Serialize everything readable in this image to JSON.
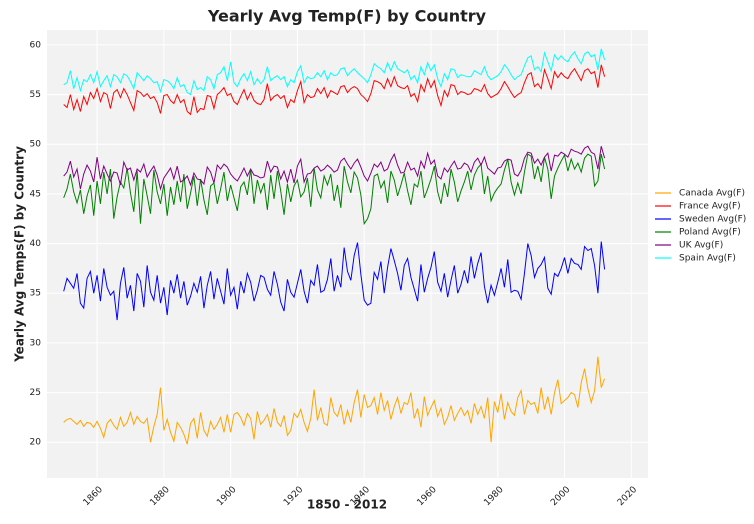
{
  "chart_data": {
    "type": "line",
    "title": "Yearly Avg Temp(F) by Country",
    "xlabel": "1850 - 2012",
    "ylabel": "Yearly Avg Temps(F) by Country",
    "x": [
      1850,
      1851,
      1852,
      1853,
      1854,
      1855,
      1856,
      1857,
      1858,
      1859,
      1860,
      1861,
      1862,
      1863,
      1864,
      1865,
      1866,
      1867,
      1868,
      1869,
      1870,
      1871,
      1872,
      1873,
      1874,
      1875,
      1876,
      1877,
      1878,
      1879,
      1880,
      1881,
      1882,
      1883,
      1884,
      1885,
      1886,
      1887,
      1888,
      1889,
      1890,
      1891,
      1892,
      1893,
      1894,
      1895,
      1896,
      1897,
      1898,
      1899,
      1900,
      1901,
      1902,
      1903,
      1904,
      1905,
      1906,
      1907,
      1908,
      1909,
      1910,
      1911,
      1912,
      1913,
      1914,
      1915,
      1916,
      1917,
      1918,
      1919,
      1920,
      1921,
      1922,
      1923,
      1924,
      1925,
      1926,
      1927,
      1928,
      1929,
      1930,
      1931,
      1932,
      1933,
      1934,
      1935,
      1936,
      1937,
      1938,
      1939,
      1940,
      1941,
      1942,
      1943,
      1944,
      1945,
      1946,
      1947,
      1948,
      1949,
      1950,
      1951,
      1952,
      1953,
      1954,
      1955,
      1956,
      1957,
      1958,
      1959,
      1960,
      1961,
      1962,
      1963,
      1964,
      1965,
      1966,
      1967,
      1968,
      1969,
      1970,
      1971,
      1972,
      1973,
      1974,
      1975,
      1976,
      1977,
      1978,
      1979,
      1980,
      1981,
      1982,
      1983,
      1984,
      1985,
      1986,
      1987,
      1988,
      1989,
      1990,
      1991,
      1992,
      1993,
      1994,
      1995,
      1996,
      1997,
      1998,
      1999,
      2000,
      2001,
      2002,
      2003,
      2004,
      2005,
      2006,
      2007,
      2008,
      2009,
      2010,
      2011,
      2012
    ],
    "series": [
      {
        "name": "Canada Avg(F)",
        "color": "orange",
        "values": [
          22.0,
          22.3,
          22.4,
          22.1,
          21.8,
          22.2,
          21.6,
          22.0,
          21.9,
          21.5,
          22.1,
          21.4,
          20.5,
          21.9,
          22.3,
          21.7,
          21.3,
          22.5,
          21.6,
          22.0,
          23.0,
          21.8,
          22.6,
          22.1,
          21.9,
          22.4,
          20.0,
          21.6,
          22.8,
          25.5,
          21.2,
          22.3,
          21.0,
          20.1,
          22.0,
          21.5,
          20.8,
          19.8,
          21.9,
          22.4,
          20.4,
          23.0,
          21.2,
          20.6,
          22.1,
          21.3,
          21.8,
          22.5,
          21.0,
          22.8,
          21.0,
          22.8,
          23.0,
          22.5,
          21.7,
          22.9,
          22.4,
          20.3,
          23.1,
          21.8,
          22.2,
          22.8,
          21.5,
          23.4,
          22.0,
          21.6,
          22.7,
          20.7,
          21.2,
          22.9,
          22.5,
          23.3,
          22.0,
          21.1,
          22.4,
          25.3,
          22.2,
          23.5,
          21.9,
          21.7,
          24.5,
          23.0,
          22.6,
          23.8,
          21.8,
          23.2,
          22.0,
          24.0,
          25.3,
          22.5,
          24.8,
          23.5,
          23.7,
          24.5,
          22.8,
          25.0,
          23.2,
          24.2,
          22.3,
          23.6,
          24.5,
          22.9,
          24.0,
          23.8,
          25.0,
          22.4,
          23.4,
          21.5,
          24.6,
          22.7,
          23.5,
          24.2,
          22.6,
          23.4,
          21.8,
          22.5,
          23.7,
          22.2,
          22.9,
          23.5,
          22.7,
          23.2,
          21.9,
          23.9,
          22.8,
          23.6,
          22.4,
          24.5,
          20.0,
          24.1,
          23.0,
          24.9,
          22.3,
          24.0,
          23.1,
          22.7,
          24.5,
          25.2,
          22.8,
          24.2,
          23.8,
          24.0,
          22.9,
          25.5,
          23.3,
          24.6,
          22.8,
          25.0,
          26.3,
          23.9,
          24.2,
          24.5,
          25.0,
          24.8,
          23.5,
          26.0,
          27.4,
          25.4,
          24.0,
          25.2,
          28.6,
          25.5,
          26.4
        ]
      },
      {
        "name": "France Avg(F)",
        "color": "red",
        "values": [
          54.0,
          53.7,
          55.0,
          53.5,
          54.5,
          53.3,
          54.8,
          54.0,
          55.2,
          54.6,
          55.6,
          54.3,
          55.2,
          55.0,
          53.6,
          55.2,
          55.5,
          54.7,
          55.6,
          55.0,
          54.2,
          53.4,
          55.4,
          55.2,
          54.8,
          55.1,
          54.6,
          54.8,
          54.2,
          53.1,
          54.9,
          55.0,
          54.4,
          54.1,
          55.0,
          54.2,
          54.5,
          53.3,
          53.0,
          54.8,
          53.2,
          53.6,
          53.5,
          54.9,
          54.8,
          53.6,
          55.0,
          55.3,
          55.7,
          54.9,
          55.1,
          54.3,
          54.0,
          54.8,
          55.5,
          54.5,
          55.2,
          54.4,
          54.1,
          54.0,
          54.5,
          56.1,
          54.4,
          54.8,
          55.0,
          54.6,
          54.9,
          53.7,
          54.5,
          54.2,
          55.4,
          56.3,
          54.2,
          55.0,
          54.7,
          54.8,
          55.6,
          55.1,
          55.7,
          54.7,
          55.4,
          55.2,
          55.0,
          55.8,
          55.9,
          55.2,
          55.6,
          55.8,
          55.6,
          55.0,
          54.7,
          54.3,
          55.1,
          56.4,
          56.3,
          56.1,
          55.6,
          56.6,
          55.8,
          56.8,
          55.9,
          55.7,
          55.6,
          55.9,
          54.8,
          55.1,
          54.3,
          56.0,
          55.3,
          56.6,
          55.7,
          56.4,
          54.9,
          53.9,
          55.4,
          54.8,
          56.0,
          55.9,
          55.0,
          55.3,
          55.2,
          55.0,
          55.1,
          55.6,
          55.5,
          55.3,
          56.0,
          55.1,
          54.7,
          54.9,
          55.1,
          55.6,
          56.3,
          55.8,
          55.2,
          54.7,
          55.0,
          55.2,
          56.2,
          57.0,
          57.2,
          55.8,
          56.1,
          55.6,
          57.5,
          56.6,
          55.6,
          57.3,
          56.7,
          57.2,
          56.8,
          56.6,
          57.2,
          57.6,
          57.0,
          56.4,
          57.4,
          57.6,
          57.1,
          57.3,
          55.7,
          58.0,
          56.8
        ]
      },
      {
        "name": "Sweden Avg(F)",
        "color": "blue",
        "values": [
          35.2,
          36.5,
          36.0,
          35.5,
          37.0,
          34.0,
          33.5,
          36.5,
          37.2,
          35.0,
          36.8,
          34.2,
          37.5,
          35.6,
          34.8,
          35.2,
          32.3,
          36.0,
          37.6,
          34.5,
          35.8,
          33.2,
          37.0,
          36.2,
          33.6,
          37.8,
          35.1,
          34.3,
          36.8,
          34.0,
          35.6,
          32.8,
          36.3,
          35.0,
          36.9,
          34.5,
          36.2,
          33.8,
          34.7,
          36.0,
          35.1,
          36.7,
          33.5,
          35.8,
          37.2,
          34.4,
          36.5,
          35.2,
          33.9,
          37.5,
          34.8,
          35.6,
          33.4,
          36.2,
          35.0,
          37.0,
          36.1,
          34.2,
          35.3,
          36.8,
          36.6,
          35.4,
          34.8,
          37.2,
          35.9,
          34.1,
          33.2,
          36.4,
          35.1,
          34.6,
          36.0,
          37.4,
          35.2,
          34.0,
          36.3,
          35.8,
          37.9,
          35.1,
          35.3,
          36.4,
          38.5,
          35.2,
          36.8,
          35.6,
          39.6,
          37.2,
          36.3,
          38.8,
          40.1,
          36.9,
          34.3,
          33.8,
          34.0,
          37.1,
          36.4,
          38.2,
          35.0,
          37.6,
          39.5,
          38.3,
          37.0,
          35.3,
          37.8,
          38.5,
          36.6,
          35.4,
          34.2,
          37.9,
          35.1,
          36.5,
          37.6,
          39.2,
          36.1,
          35.2,
          37.0,
          34.6,
          36.3,
          37.8,
          35.0,
          35.9,
          37.3,
          36.0,
          38.7,
          36.5,
          38.0,
          39.1,
          35.7,
          34.0,
          35.8,
          34.8,
          36.1,
          37.5,
          35.6,
          38.4,
          35.1,
          35.3,
          35.2,
          34.4,
          37.0,
          40.0,
          38.8,
          36.6,
          37.5,
          37.9,
          38.6,
          35.5,
          34.9,
          37.0,
          36.7,
          37.5,
          38.6,
          37.0,
          38.5,
          38.0,
          37.9,
          37.4,
          39.7,
          39.3,
          39.5,
          37.8,
          35.0,
          40.2,
          37.4
        ]
      },
      {
        "name": "Poland Avg(F)",
        "color": "green",
        "values": [
          44.6,
          45.5,
          47.0,
          45.2,
          44.1,
          45.4,
          43.0,
          44.8,
          45.9,
          42.8,
          46.3,
          44.0,
          47.2,
          45.0,
          47.5,
          42.5,
          44.7,
          46.2,
          45.6,
          47.6,
          45.1,
          43.2,
          47.3,
          42.0,
          46.5,
          44.8,
          43.0,
          47.4,
          45.2,
          44.0,
          46.0,
          42.8,
          45.7,
          43.9,
          46.3,
          44.2,
          47.0,
          43.5,
          45.1,
          46.8,
          43.8,
          46.5,
          44.4,
          42.9,
          45.8,
          46.1,
          44.0,
          45.5,
          47.2,
          44.3,
          45.9,
          44.6,
          43.3,
          45.7,
          46.2,
          44.9,
          47.5,
          44.0,
          46.4,
          45.1,
          46.1,
          43.4,
          46.9,
          44.5,
          47.3,
          45.3,
          42.9,
          46.0,
          44.2,
          45.8,
          46.4,
          44.7,
          45.2,
          46.6,
          43.7,
          47.6,
          45.4,
          44.6,
          46.8,
          45.9,
          47.0,
          44.3,
          45.9,
          43.6,
          47.8,
          46.2,
          45.1,
          47.2,
          46.6,
          44.9,
          42.0,
          42.5,
          43.5,
          46.8,
          47.0,
          45.6,
          46.3,
          44.1,
          47.3,
          46.4,
          44.8,
          45.9,
          47.1,
          45.3,
          43.9,
          46.0,
          45.7,
          47.3,
          44.6,
          45.5,
          46.5,
          47.8,
          45.2,
          44.0,
          46.1,
          44.7,
          47.5,
          46.2,
          44.2,
          45.3,
          46.2,
          47.3,
          45.4,
          46.9,
          47.6,
          48.0,
          45.0,
          46.8,
          44.3,
          45.1,
          45.6,
          46.0,
          47.4,
          48.5,
          46.2,
          44.9,
          46.1,
          45.0,
          47.2,
          49.0,
          48.8,
          46.5,
          47.8,
          46.2,
          48.7,
          47.5,
          44.5,
          46.8,
          47.6,
          48.3,
          48.9,
          47.3,
          48.5,
          47.5,
          48.1,
          47.2,
          48.6,
          49.0,
          48.8,
          45.8,
          46.3,
          49.0,
          47.5
        ]
      },
      {
        "name": "UK Avg(F)",
        "color": "purple",
        "values": [
          46.8,
          47.2,
          48.3,
          46.7,
          47.5,
          45.5,
          47.0,
          47.9,
          47.3,
          46.2,
          48.7,
          46.5,
          47.8,
          47.0,
          46.3,
          47.2,
          47.1,
          45.9,
          48.2,
          47.4,
          47.6,
          46.4,
          47.5,
          47.2,
          48.0,
          46.7,
          47.3,
          47.8,
          46.9,
          45.5,
          46.6,
          47.1,
          47.6,
          46.5,
          47.8,
          46.2,
          46.4,
          46.8,
          45.9,
          47.1,
          46.5,
          46.4,
          46.0,
          47.7,
          47.2,
          46.1,
          47.9,
          47.5,
          48.0,
          47.7,
          47.0,
          46.6,
          46.3,
          46.9,
          47.6,
          46.8,
          47.5,
          46.9,
          46.8,
          46.6,
          46.7,
          48.3,
          47.2,
          47.8,
          47.7,
          46.5,
          47.3,
          46.2,
          47.5,
          46.1,
          47.8,
          48.5,
          46.2,
          47.0,
          47.1,
          47.6,
          47.8,
          47.3,
          47.5,
          47.9,
          47.6,
          47.2,
          47.4,
          48.3,
          48.6,
          48.0,
          47.5,
          48.1,
          48.5,
          47.7,
          46.8,
          46.3,
          47.1,
          48.0,
          47.7,
          48.2,
          47.3,
          47.5,
          48.4,
          49.0,
          47.9,
          47.1,
          47.2,
          48.2,
          47.4,
          47.6,
          46.8,
          48.3,
          47.6,
          49.1,
          48.0,
          48.4,
          46.8,
          46.5,
          47.6,
          47.2,
          47.8,
          48.3,
          47.5,
          47.6,
          48.1,
          47.9,
          47.2,
          48.2,
          48.6,
          47.9,
          48.7,
          47.6,
          47.3,
          47.0,
          47.6,
          47.7,
          48.3,
          48.5,
          48.4,
          47.0,
          46.8,
          47.4,
          48.6,
          49.2,
          49.1,
          48.1,
          48.5,
          47.9,
          48.7,
          49.1,
          47.3,
          48.9,
          48.8,
          49.2,
          49.0,
          48.7,
          49.5,
          49.3,
          49.2,
          49.0,
          49.6,
          49.8,
          49.2,
          49.0,
          47.5,
          49.8,
          48.6
        ]
      },
      {
        "name": "Spain Avg(F)",
        "color": "cyan",
        "values": [
          56.0,
          56.2,
          57.4,
          55.6,
          56.7,
          55.4,
          56.5,
          56.3,
          57.0,
          56.2,
          57.3,
          55.8,
          56.4,
          56.9,
          55.8,
          57.0,
          56.8,
          56.2,
          57.1,
          56.9,
          56.3,
          55.6,
          57.2,
          56.8,
          56.4,
          56.9,
          56.6,
          56.2,
          56.3,
          55.3,
          56.5,
          56.4,
          56.1,
          55.6,
          56.7,
          55.8,
          56.0,
          55.2,
          55.0,
          56.4,
          55.5,
          55.7,
          55.4,
          56.8,
          56.5,
          55.6,
          57.0,
          57.2,
          57.8,
          56.4,
          58.3,
          56.2,
          55.8,
          56.6,
          57.1,
          56.4,
          57.3,
          56.0,
          56.6,
          56.1,
          56.5,
          57.8,
          56.4,
          56.7,
          56.9,
          56.5,
          56.8,
          55.8,
          56.5,
          56.2,
          57.3,
          57.9,
          56.2,
          56.8,
          56.6,
          56.7,
          57.2,
          56.8,
          57.4,
          56.5,
          57.2,
          56.9,
          57.0,
          57.6,
          57.7,
          56.9,
          57.3,
          57.6,
          57.2,
          56.9,
          56.6,
          56.2,
          57.0,
          58.1,
          57.8,
          57.6,
          57.2,
          58.2,
          57.4,
          58.3,
          57.6,
          57.4,
          57.2,
          57.5,
          56.5,
          56.9,
          56.2,
          57.8,
          57.0,
          58.2,
          57.4,
          58.0,
          56.6,
          55.8,
          57.1,
          56.5,
          57.6,
          57.5,
          56.7,
          57.0,
          56.9,
          56.8,
          56.8,
          57.4,
          57.2,
          57.0,
          57.8,
          56.9,
          56.5,
          56.7,
          56.9,
          57.3,
          58.0,
          57.6,
          57.0,
          56.5,
          56.8,
          57.0,
          57.9,
          58.7,
          58.9,
          57.5,
          57.8,
          57.3,
          59.2,
          58.3,
          57.4,
          59.0,
          58.5,
          58.9,
          58.5,
          58.3,
          58.9,
          59.3,
          58.6,
          58.1,
          59.1,
          59.3,
          58.8,
          59.0,
          57.5,
          59.6,
          58.5
        ]
      }
    ],
    "xlim": [
      1845,
      2025
    ],
    "xticks": [
      1860,
      1880,
      1900,
      1920,
      1940,
      1960,
      1980,
      2000,
      2020
    ],
    "ylim": [
      16.4,
      61.5
    ],
    "yticks": [
      20,
      25,
      30,
      35,
      40,
      45,
      50,
      55,
      60
    ],
    "grid": true,
    "legend": "right"
  }
}
